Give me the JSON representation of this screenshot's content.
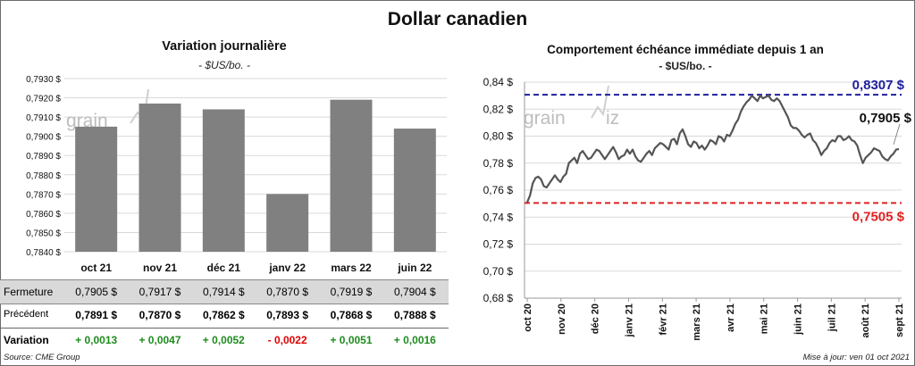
{
  "title": "Dollar canadien",
  "left": {
    "title": "Variation  journalière",
    "unit": "- $US/bo. -",
    "watermark": "grain",
    "chart_data": {
      "type": "bar",
      "categories": [
        "oct 21",
        "nov 21",
        "déc 21",
        "janv 22",
        "mars 22",
        "juin 22"
      ],
      "values": [
        0.7905,
        0.7917,
        0.7914,
        0.787,
        0.7919,
        0.7904
      ],
      "ylim": [
        0.784,
        0.793
      ],
      "yticks": [
        "0,7840 $",
        "0,7850 $",
        "0,7860 $",
        "0,7870 $",
        "0,7880 $",
        "0,7890 $",
        "0,7900 $",
        "0,7910 $",
        "0,7920 $",
        "0,7930 $"
      ],
      "bar_color": "#808080",
      "grid": true
    },
    "table": {
      "rows": [
        {
          "label": "Fermeture",
          "values": [
            "0,7905  $",
            "0,7917  $",
            "0,7914  $",
            "0,7870  $",
            "0,7919  $",
            "0,7904  $"
          ]
        },
        {
          "label": "Précédent",
          "values": [
            "0,7891  $",
            "0,7870  $",
            "0,7862  $",
            "0,7893  $",
            "0,7868  $",
            "0,7888  $"
          ]
        },
        {
          "label": "Variation",
          "values": [
            "+ 0,0013",
            "+ 0,0047",
            "+ 0,0052",
            "- 0,0022",
            "+ 0,0051",
            "+ 0,0016"
          ]
        }
      ],
      "positive_color": "#1e8c1e",
      "negative_color": "#e00000"
    }
  },
  "right": {
    "title": "Comportement échéance immédiate depuis 1 an",
    "unit": "- $US/bo. -",
    "watermark": "grain",
    "watermark2": "iz",
    "chart_data": {
      "type": "line",
      "ylim": [
        0.68,
        0.84
      ],
      "yticks": [
        "0,68 $",
        "0,70 $",
        "0,72 $",
        "0,74 $",
        "0,76 $",
        "0,78 $",
        "0,80 $",
        "0,82 $",
        "0,84 $"
      ],
      "xticks": [
        "oct 20",
        "nov 20",
        "déc 20",
        "janv 21",
        "févr 21",
        "mars 21",
        "avr 21",
        "mai 21",
        "juin 21",
        "juil 21",
        "août 21",
        "sept 21"
      ],
      "values": [
        0.751,
        0.756,
        0.765,
        0.769,
        0.77,
        0.768,
        0.763,
        0.762,
        0.765,
        0.768,
        0.771,
        0.768,
        0.766,
        0.77,
        0.772,
        0.78,
        0.782,
        0.784,
        0.78,
        0.787,
        0.789,
        0.786,
        0.783,
        0.784,
        0.787,
        0.79,
        0.789,
        0.786,
        0.783,
        0.786,
        0.789,
        0.792,
        0.788,
        0.783,
        0.785,
        0.786,
        0.79,
        0.787,
        0.79,
        0.785,
        0.782,
        0.781,
        0.784,
        0.787,
        0.789,
        0.786,
        0.791,
        0.793,
        0.795,
        0.794,
        0.792,
        0.79,
        0.797,
        0.798,
        0.794,
        0.802,
        0.805,
        0.8,
        0.794,
        0.792,
        0.796,
        0.795,
        0.791,
        0.793,
        0.79,
        0.793,
        0.797,
        0.796,
        0.794,
        0.8,
        0.799,
        0.796,
        0.801,
        0.8,
        0.804,
        0.809,
        0.812,
        0.818,
        0.822,
        0.825,
        0.827,
        0.83,
        0.828,
        0.826,
        0.83,
        0.828,
        0.829,
        0.83,
        0.827,
        0.826,
        0.828,
        0.826,
        0.822,
        0.818,
        0.814,
        0.808,
        0.806,
        0.806,
        0.804,
        0.801,
        0.799,
        0.801,
        0.802,
        0.797,
        0.795,
        0.791,
        0.786,
        0.789,
        0.791,
        0.795,
        0.797,
        0.796,
        0.8,
        0.8,
        0.797,
        0.798,
        0.8,
        0.797,
        0.796,
        0.793,
        0.786,
        0.78,
        0.784,
        0.786,
        0.788,
        0.791,
        0.79,
        0.789,
        0.785,
        0.783,
        0.782,
        0.785,
        0.787,
        0.79,
        0.7905
      ],
      "high": {
        "value": 0.8307,
        "label": "0,8307  $",
        "color": "#1f1f9e"
      },
      "low": {
        "value": 0.7505,
        "label": "0,7505  $",
        "color": "#e02020"
      },
      "last": {
        "value": 0.7905,
        "label": "0,7905 $"
      },
      "line_color": "#555555",
      "grid": true
    }
  },
  "footer": {
    "source": "Source: CME Group",
    "update": "Mise à jour: ven 01 oct 2021"
  }
}
